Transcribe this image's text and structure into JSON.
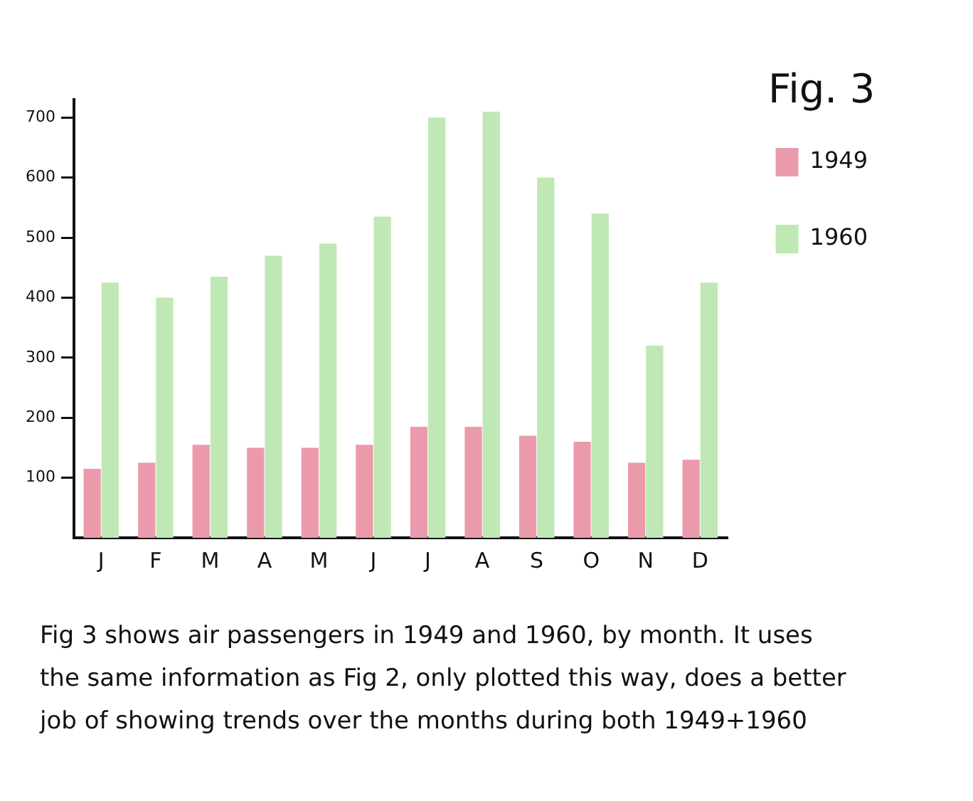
{
  "chart_data": {
    "type": "bar",
    "title": "Fig. 3",
    "categories": [
      "J",
      "F",
      "M",
      "A",
      "M",
      "J",
      "J",
      "A",
      "S",
      "O",
      "N",
      "D"
    ],
    "series": [
      {
        "name": "1949",
        "color": "#eb9aac",
        "values": [
          115,
          125,
          155,
          150,
          150,
          155,
          185,
          185,
          170,
          160,
          125,
          130
        ]
      },
      {
        "name": "1960",
        "color": "#bfe8b5",
        "values": [
          425,
          400,
          435,
          470,
          490,
          535,
          700,
          710,
          600,
          540,
          320,
          425
        ]
      }
    ],
    "ylim": [
      0,
      730
    ],
    "yticks": [
      100,
      200,
      300,
      400,
      500,
      600,
      700
    ],
    "grid": false,
    "legend": "top right",
    "annotations": [
      "Fig 3 shows air passengers in 1949 and 1960, by month. It uses",
      "the same information as Fig 2, only plotted this way, does a better",
      "job of showing trends over the months during both 1949+1960"
    ]
  }
}
